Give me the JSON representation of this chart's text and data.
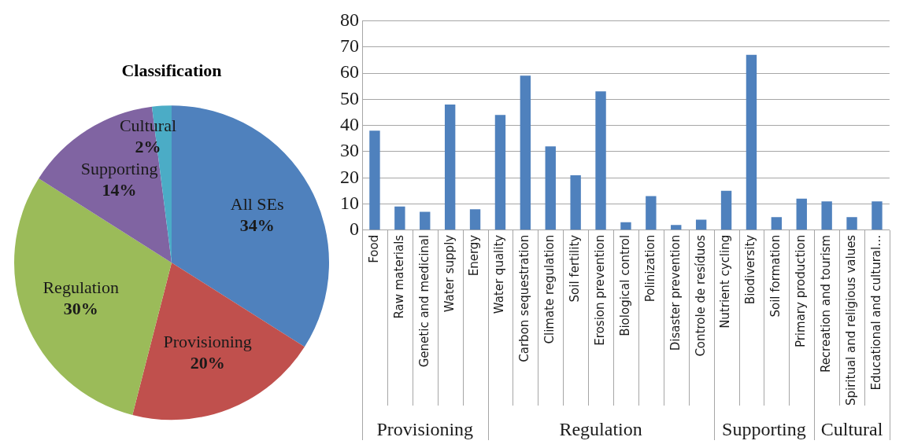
{
  "chart_data": [
    {
      "type": "pie",
      "title": "Classification",
      "categories": [
        "All SEs",
        "Provisioning",
        "Regulation",
        "Supporting",
        "Cultural"
      ],
      "values": [
        34,
        20,
        30,
        14,
        2
      ],
      "colors": [
        "#4f81bd",
        "#c0504d",
        "#9bbb59",
        "#8064a2",
        "#4bacc6"
      ],
      "value_labels": [
        "34%",
        "20%",
        "30%",
        "14%",
        "2%"
      ],
      "legend": false
    },
    {
      "type": "bar",
      "categories": [
        "Food",
        "Raw materials",
        "Genetic and medicinal",
        "Water supply",
        "Energy",
        "Water quality",
        "Carbon sequestration",
        "Climate regulation",
        "Soil fertility",
        "Erosion prevention",
        "Biological control",
        "Polinization",
        "Disaster prevention",
        "Controle de resíduos",
        "Nutrient cycling",
        "Biodiversity",
        "Soil formation",
        "Primary production",
        "Recreation and tourism",
        "Spiritual and religious values",
        "Educational and cultural…"
      ],
      "values": [
        38,
        9,
        7,
        48,
        8,
        44,
        59,
        32,
        21,
        53,
        3,
        13,
        2,
        4,
        15,
        67,
        5,
        12,
        11,
        5,
        11
      ],
      "color": "#4f81bd",
      "ylim": [
        0,
        80
      ],
      "yticks": [
        0,
        10,
        20,
        30,
        40,
        50,
        60,
        70,
        80
      ],
      "grid": "y",
      "legend": false,
      "annotations": [
        "Provisioning",
        "Regulation",
        "Supporting",
        "Cultural"
      ]
    }
  ]
}
